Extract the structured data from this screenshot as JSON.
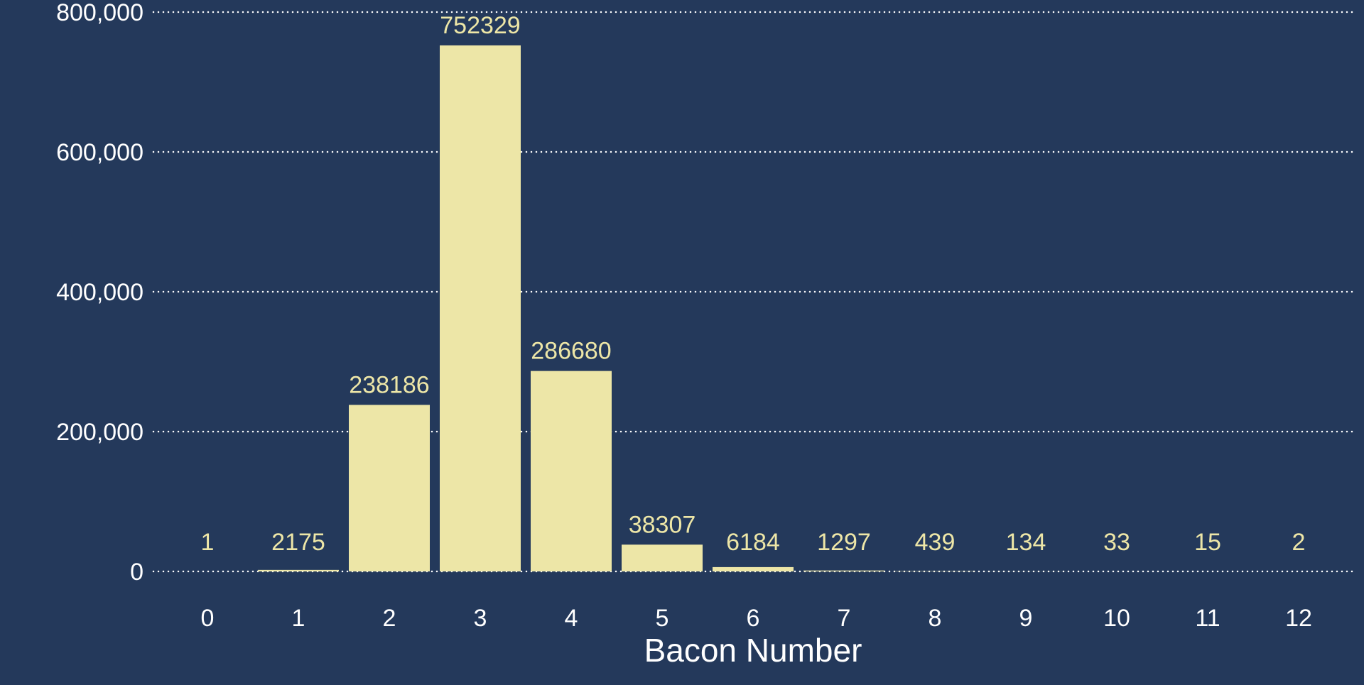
{
  "colors": {
    "background": "#24395b",
    "bar": "#ede6a7",
    "data_label": "#ede6a7",
    "axis_text": "#ffffff",
    "grid": "#ffffff"
  },
  "chart_data": {
    "type": "bar",
    "title": "",
    "xlabel": "Bacon Number",
    "ylabel": "",
    "categories": [
      "0",
      "1",
      "2",
      "3",
      "4",
      "5",
      "6",
      "7",
      "8",
      "9",
      "10",
      "11",
      "12"
    ],
    "values": [
      1,
      2175,
      238186,
      752329,
      286680,
      38307,
      6184,
      1297,
      439,
      134,
      33,
      15,
      2
    ],
    "data_labels": [
      "1",
      "2175",
      "238186",
      "752329",
      "286680",
      "38307",
      "6184",
      "1297",
      "439",
      "134",
      "33",
      "15",
      "2"
    ],
    "ylim": [
      0,
      800000
    ],
    "yticks": [
      0,
      200000,
      400000,
      600000,
      800000
    ],
    "ytick_labels": [
      "0",
      "200,000",
      "400,000",
      "600,000",
      "800,000"
    ],
    "grid": "horizontal-dotted",
    "legend": "none"
  }
}
